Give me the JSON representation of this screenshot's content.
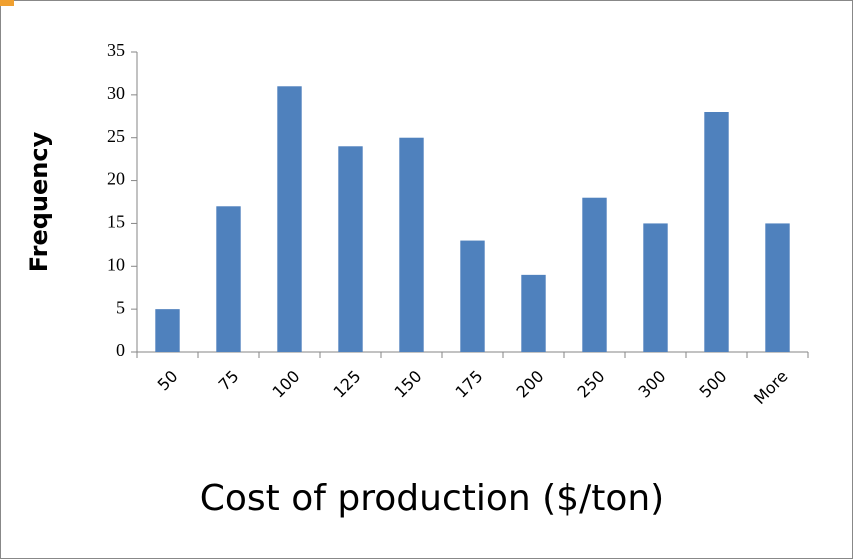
{
  "chart_data": {
    "type": "bar",
    "x_label": "Cost of production ($/ton)",
    "y_label": "Frequency",
    "categories": [
      "50",
      "75",
      "100",
      "125",
      "150",
      "175",
      "200",
      "250",
      "300",
      "500",
      "More"
    ],
    "values": [
      5,
      17,
      31,
      24,
      25,
      13,
      9,
      18,
      15,
      28,
      15
    ],
    "color": "#4f81bd",
    "ylim": [
      0,
      35
    ],
    "yticks": [
      0,
      5,
      10,
      15,
      20,
      25,
      30,
      35
    ],
    "grid": false
  }
}
